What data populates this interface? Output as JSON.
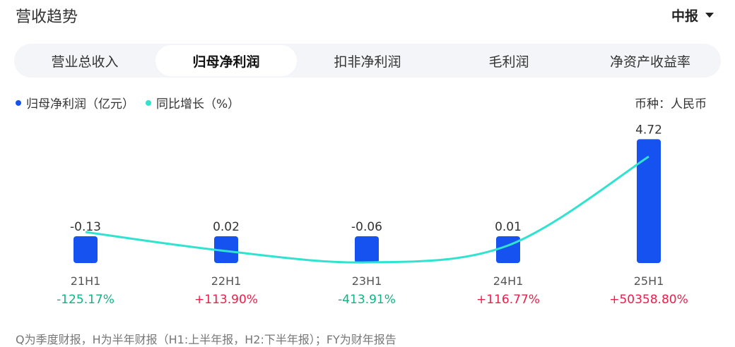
{
  "header": {
    "title": "营收趋势",
    "period_selector": "中报"
  },
  "tabs": [
    {
      "label": "营业总收入",
      "active": false
    },
    {
      "label": "归母净利润",
      "active": true
    },
    {
      "label": "扣非净利润",
      "active": false
    },
    {
      "label": "毛利润",
      "active": false
    },
    {
      "label": "净资产收益率",
      "active": false
    }
  ],
  "legend": {
    "bar": {
      "label": "归母净利润（亿元）",
      "color": "#1652f0"
    },
    "line": {
      "label": "同比增长（%）",
      "color": "#2fe3cf"
    }
  },
  "currency_label": "币种：人民币",
  "colors": {
    "positive": "#e8214a",
    "negative": "#11b382"
  },
  "chart_data": {
    "type": "bar",
    "categories": [
      "21H1",
      "22H1",
      "23H1",
      "24H1",
      "25H1"
    ],
    "series": [
      {
        "name": "归母净利润（亿元）",
        "type": "bar",
        "values": [
          -0.13,
          0.02,
          -0.06,
          0.01,
          4.72
        ],
        "value_labels": [
          "-0.13",
          "0.02",
          "-0.06",
          "0.01",
          "4.72"
        ]
      },
      {
        "name": "同比增长（%）",
        "type": "line",
        "values": [
          -125.17,
          113.9,
          -413.91,
          116.77,
          50358.8
        ],
        "value_labels": [
          "-125.17%",
          "+113.90%",
          "-413.91%",
          "+116.77%",
          "+50358.80%"
        ]
      }
    ]
  },
  "footnote": "Q为季度财报，H为半年财报（H1:上半年报，H2:下半年报）；FY为财年报告"
}
